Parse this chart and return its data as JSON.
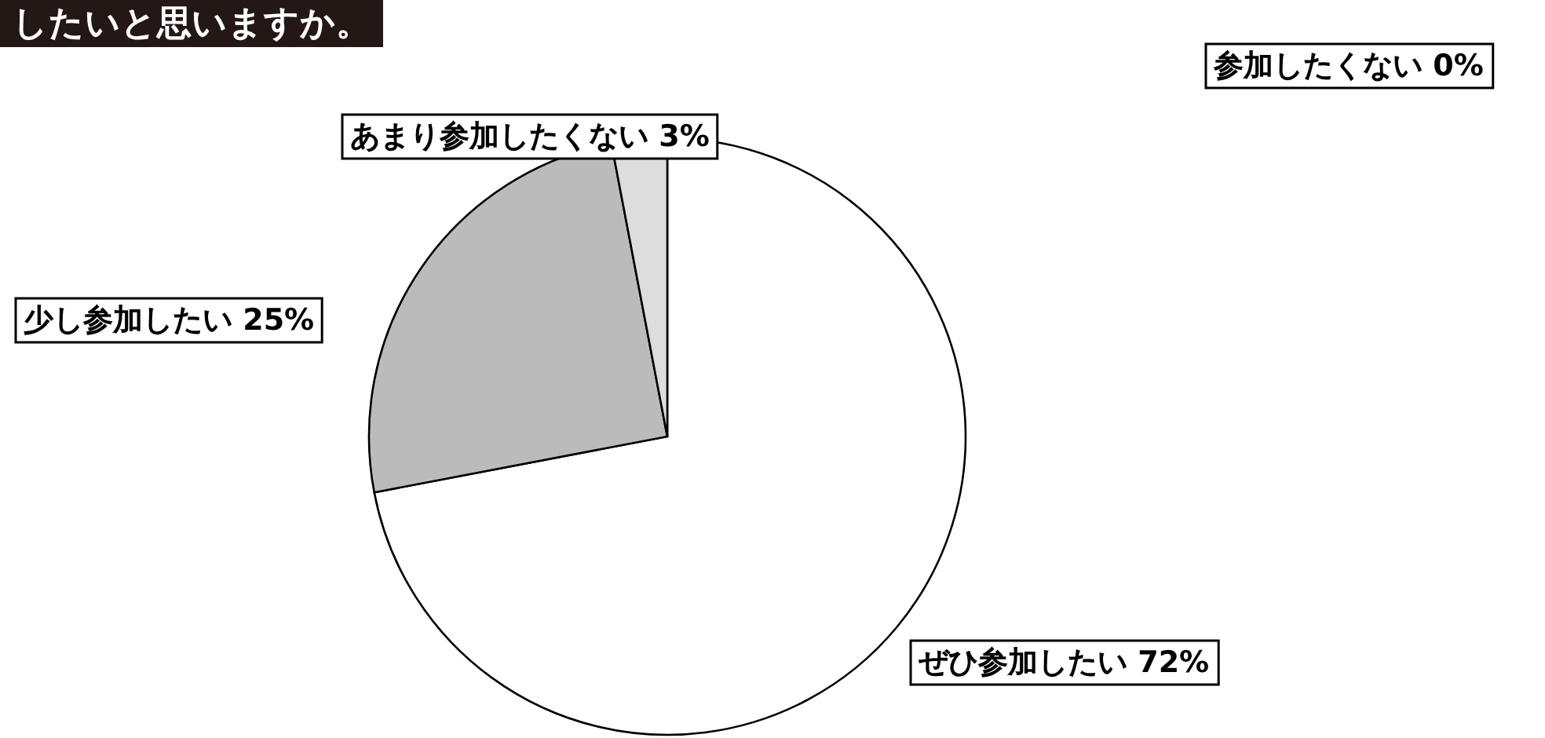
{
  "chart_data": {
    "type": "pie",
    "title": "したいと思いますか。",
    "categories": [
      "ぜひ参加したい",
      "少し参加したい",
      "あまり参加したくない",
      "参加したくない"
    ],
    "values": [
      72,
      25,
      3,
      0
    ],
    "colors": [
      "#ffffff",
      "#bbbbbb",
      "#dddddd",
      "#ffffff"
    ],
    "value_labels": [
      "72%",
      "25%",
      "3%",
      "0%"
    ]
  }
}
